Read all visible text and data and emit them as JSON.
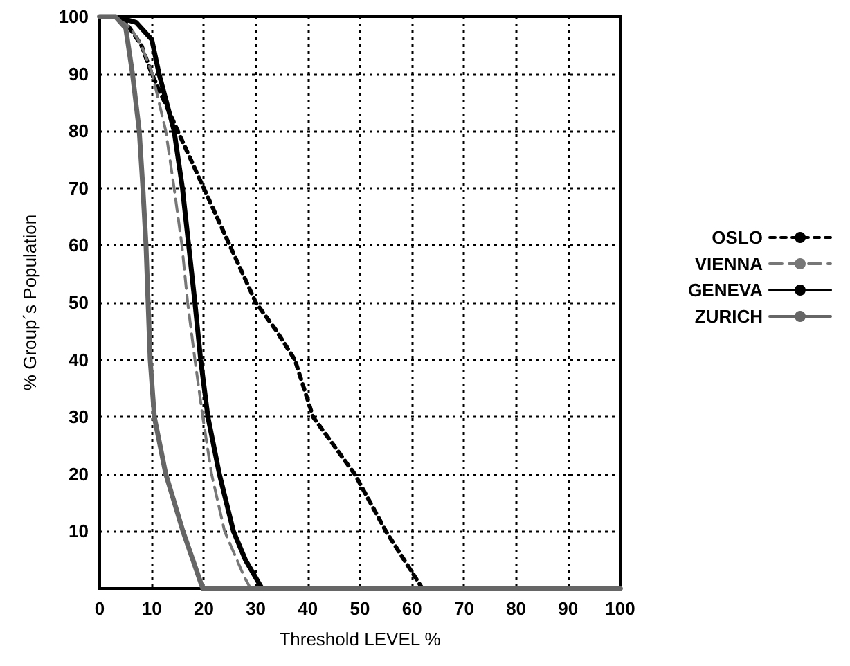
{
  "chart_data": {
    "type": "line",
    "xlabel": "Threshold LEVEL %",
    "ylabel": "% Group´s Population",
    "xlim": [
      0,
      100
    ],
    "ylim": [
      0,
      100
    ],
    "xticks": [
      0,
      10,
      20,
      30,
      40,
      50,
      60,
      70,
      80,
      90,
      100
    ],
    "yticks": [
      {
        "value": 0,
        "label": null
      },
      10,
      20,
      30,
      40,
      50,
      60,
      70,
      80,
      90,
      100
    ],
    "grid": true,
    "legend": "right",
    "marker": "none",
    "series": [
      {
        "name": "OSLO",
        "color": "#000000",
        "line_style": "dotted",
        "x": [
          0,
          3,
          5,
          8,
          10,
          15,
          20,
          25,
          30,
          34,
          37.5,
          41,
          49,
          55,
          62,
          70,
          80,
          90,
          100
        ],
        "values": [
          100,
          100,
          99,
          95,
          90,
          80,
          70,
          60,
          50,
          45,
          40,
          30,
          20,
          10,
          0,
          0,
          0,
          0,
          0
        ]
      },
      {
        "name": "VIENNA",
        "color": "#777777",
        "line_style": "dashed",
        "x": [
          0,
          3,
          6,
          8,
          10.1,
          12.7,
          14.3,
          15.8,
          16.9,
          18.3,
          19.8,
          21.5,
          24,
          27.8,
          29,
          40,
          60,
          80,
          100
        ],
        "values": [
          100,
          100,
          98,
          95,
          90,
          80,
          70,
          60,
          50,
          40,
          30,
          20,
          10,
          2,
          0,
          0,
          0,
          0,
          0
        ]
      },
      {
        "name": "GENEVA",
        "color": "#000000",
        "line_style": "solid",
        "x": [
          0,
          3,
          7,
          10,
          11.4,
          14.3,
          15.9,
          17.1,
          18.3,
          19.4,
          20.8,
          23,
          25.7,
          28,
          31.2,
          40,
          60,
          80,
          100
        ],
        "values": [
          100,
          100,
          99,
          96,
          90,
          80,
          70,
          60,
          50,
          40,
          30,
          20,
          10,
          5,
          0,
          0,
          0,
          0,
          0
        ]
      },
      {
        "name": "ZURICH",
        "color": "#666666",
        "line_style": "solid",
        "x": [
          0,
          3,
          5,
          6.3,
          7.6,
          8.3,
          8.9,
          9.3,
          9.7,
          10.5,
          12.7,
          16,
          19.8,
          30,
          50,
          70,
          100
        ],
        "values": [
          100,
          100,
          98,
          90,
          80,
          70,
          60,
          50,
          40,
          30,
          20,
          10,
          0,
          0,
          0,
          0,
          0
        ]
      }
    ]
  }
}
